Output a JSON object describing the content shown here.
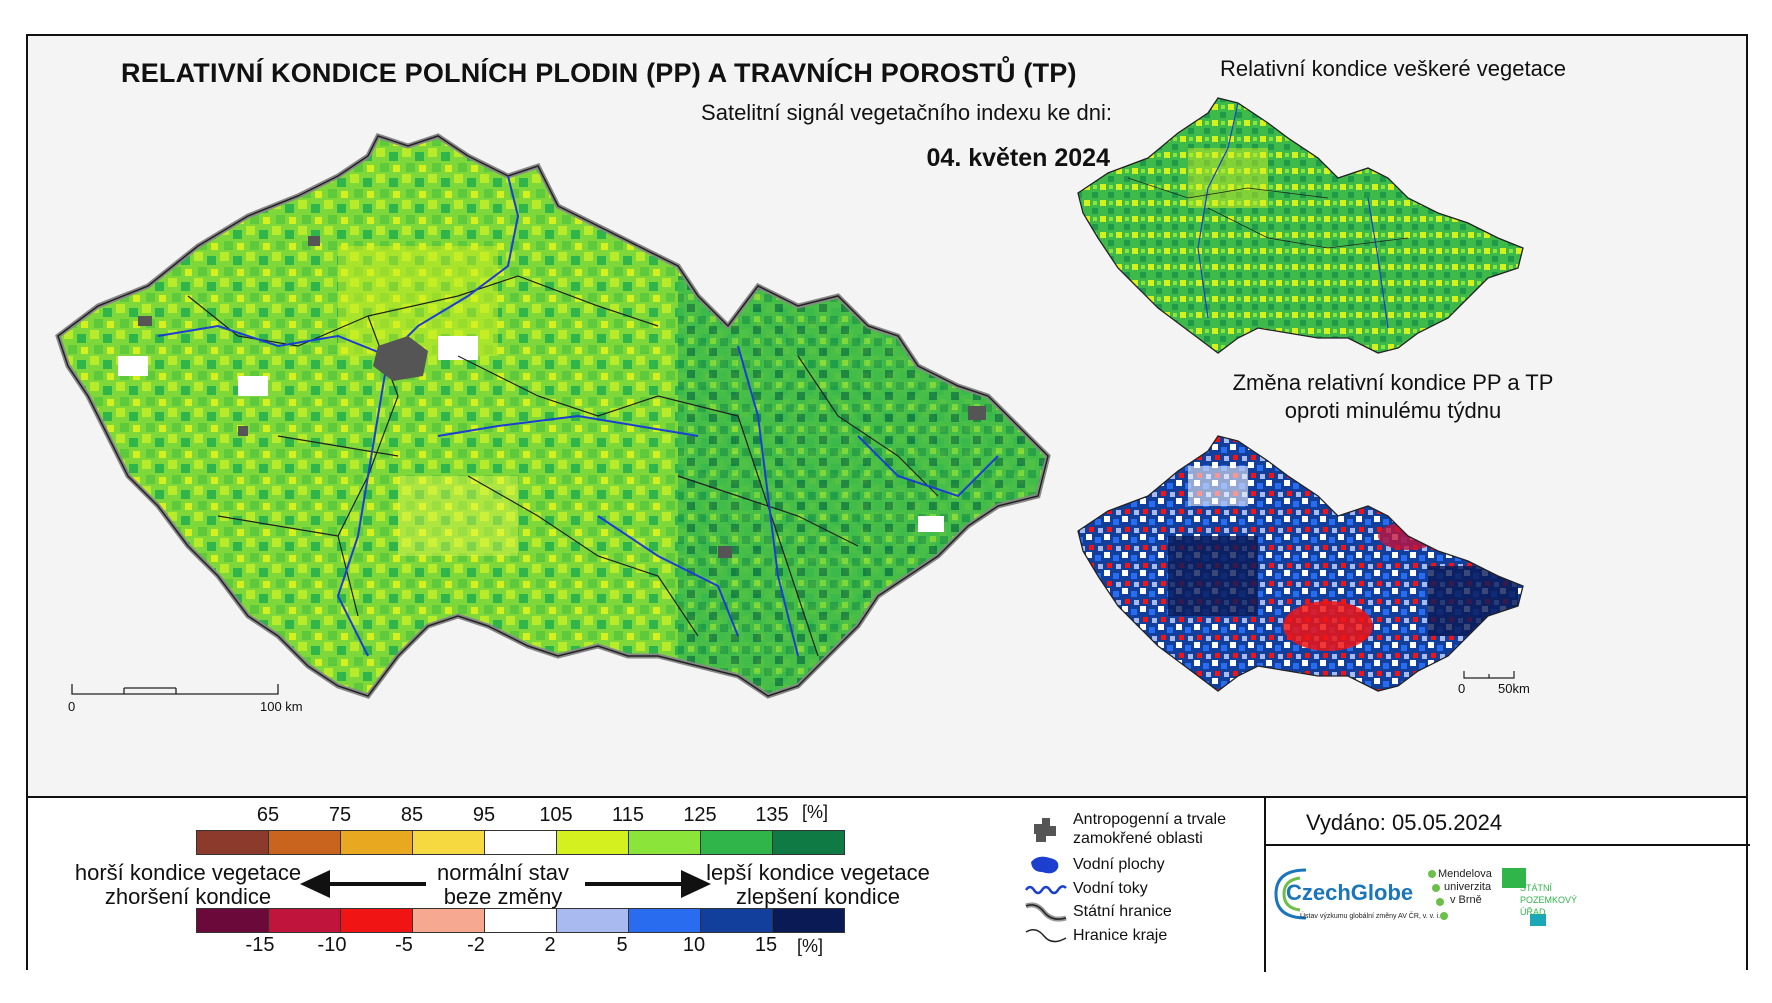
{
  "title": "RELATIVNÍ KONDICE POLNÍCH PLODIN (PP) A TRAVNÍCH POROSTŮ (TP)",
  "subtitle": "Satelitní signál vegetačního indexu ke dni:",
  "date": "04. květen 2024",
  "inset_top": {
    "title": "Relativní kondice veškeré vegetace"
  },
  "inset_bottom": {
    "title_line1": "Změna relativní kondice PP a TP",
    "title_line2": "oproti minulému týdnu"
  },
  "scale_main": {
    "start": "0",
    "end": "100 km"
  },
  "scale_inset": {
    "start": "0",
    "end": "50km"
  },
  "legend_condition": {
    "ticks": [
      "65",
      "75",
      "85",
      "95",
      "105",
      "115",
      "125",
      "135"
    ],
    "unit": "[%]",
    "colors": [
      "#8b3a2b",
      "#c8641e",
      "#e8a820",
      "#f6d940",
      "#ffffff",
      "#d4f01e",
      "#8be43a",
      "#2fb54a",
      "#0f7a43"
    ]
  },
  "legend_change": {
    "ticks": [
      "-15",
      "-10",
      "-5",
      "-2",
      "2",
      "5",
      "10",
      "15"
    ],
    "unit": "[%]",
    "colors": [
      "#6b0a3a",
      "#c0143c",
      "#f01414",
      "#f7a890",
      "#ffffff",
      "#a8baf0",
      "#2a6cf0",
      "#123e9c",
      "#0a1a55"
    ]
  },
  "arrows": {
    "left_line1": "horší kondice vegetace",
    "left_line2": "zhoršení kondice",
    "center_line1": "normální stav",
    "center_line2": "beze změny",
    "right_line1": "lepší kondice vegetace",
    "right_line2": "zlepšení kondice"
  },
  "symbols": [
    {
      "label_line1": "Antropogenní a trvale",
      "label_line2": "zamokřené oblasti",
      "icon": "urban-area-icon"
    },
    {
      "label_line1": "Vodní plochy",
      "icon": "water-body-icon"
    },
    {
      "label_line1": "Vodní toky",
      "icon": "river-icon"
    },
    {
      "label_line1": "Státní hranice",
      "icon": "state-border-icon"
    },
    {
      "label_line1": "Hranice kraje",
      "icon": "region-border-icon"
    }
  ],
  "issued": "Vydáno: 05.05.2024",
  "logos": {
    "czechglobe": "CzechGlobe",
    "czechglobe_sub": "Ústav výzkumu globální změny AV ČR, v. v. i.",
    "mendel_line1": "Mendelova",
    "mendel_line2": "univerzita",
    "mendel_line3": "v Brně",
    "spu_line1": "STÁTNÍ",
    "spu_line2": "POZEMKOVÝ",
    "spu_line3": "ÚŘAD"
  }
}
